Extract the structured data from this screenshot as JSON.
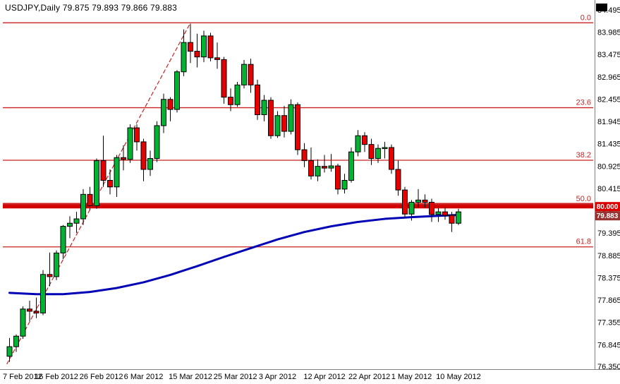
{
  "window": {
    "title": "USDJPY,Daily 79.875 79.893 79.866 79.883"
  },
  "chart_data": {
    "type": "candlestick",
    "title": "USDJPY,Daily",
    "symbol": "USDJPY",
    "timeframe": "Daily",
    "quote": {
      "open": 79.875,
      "high": 79.893,
      "low": 79.866,
      "close": 79.883
    },
    "y_axis": {
      "side": "right",
      "min": 76.35,
      "max": 84.495,
      "labels": [
        "84.495",
        "83.985",
        "83.475",
        "82.965",
        "82.455",
        "81.945",
        "81.435",
        "80.925",
        "80.415",
        "79.905",
        "79.395",
        "78.885",
        "78.375",
        "77.865",
        "77.355",
        "76.845",
        "76.350"
      ]
    },
    "x_axis": {
      "labels": [
        {
          "text": "7 Feb 2012",
          "i": 0
        },
        {
          "text": "16 Feb 2012",
          "i": 7
        },
        {
          "text": "26 Feb 2012",
          "i": 13.7
        },
        {
          "text": "6 Mar 2012",
          "i": 20
        },
        {
          "text": "15 Mar 2012",
          "i": 27
        },
        {
          "text": "25 Mar 2012",
          "i": 33.7
        },
        {
          "text": "3 Apr 2012",
          "i": 40
        },
        {
          "text": "12 Apr 2012",
          "i": 47
        },
        {
          "text": "22 Apr 2012",
          "i": 53.7
        },
        {
          "text": "1 May 2012",
          "i": 60
        },
        {
          "text": "10 May 2012",
          "i": 67
        }
      ]
    },
    "candles": {
      "columns": [
        "date",
        "open",
        "high",
        "low",
        "close"
      ],
      "rows": [
        [
          "7 Feb",
          76.58,
          77.0,
          76.45,
          76.8
        ],
        [
          "8 Feb",
          76.8,
          77.08,
          76.68,
          77.04
        ],
        [
          "9 Feb",
          77.04,
          77.72,
          76.98,
          77.66
        ],
        [
          "10 Feb",
          77.66,
          77.85,
          77.38,
          77.61
        ],
        [
          "13 Feb",
          77.61,
          77.92,
          77.45,
          77.57
        ],
        [
          "14 Feb",
          77.57,
          78.55,
          77.52,
          78.45
        ],
        [
          "15 Feb",
          78.45,
          78.95,
          78.18,
          78.4
        ],
        [
          "16 Feb",
          78.4,
          79.0,
          78.32,
          78.94
        ],
        [
          "17 Feb",
          78.94,
          79.58,
          78.8,
          79.55
        ],
        [
          "20 Feb",
          79.55,
          79.78,
          79.28,
          79.62
        ],
        [
          "21 Feb",
          79.62,
          79.88,
          79.4,
          79.72
        ],
        [
          "22 Feb",
          79.72,
          80.4,
          79.58,
          80.28
        ],
        [
          "23 Feb",
          80.28,
          80.45,
          79.92,
          80.02
        ],
        [
          "24 Feb",
          80.02,
          81.1,
          79.95,
          81.05
        ],
        [
          "27 Feb",
          81.05,
          81.62,
          80.45,
          80.6
        ],
        [
          "28 Feb",
          80.6,
          80.85,
          80.28,
          80.45
        ],
        [
          "29 Feb",
          80.45,
          81.18,
          80.22,
          81.12
        ],
        [
          "1 Mar",
          81.12,
          81.4,
          80.83,
          81.08
        ],
        [
          "2 Mar",
          81.08,
          81.88,
          81.0,
          81.8
        ],
        [
          "5 Mar",
          81.8,
          81.88,
          81.28,
          81.48
        ],
        [
          "6 Mar",
          81.48,
          81.55,
          80.58,
          80.85
        ],
        [
          "7 Mar",
          80.85,
          81.28,
          80.7,
          81.1
        ],
        [
          "8 Mar",
          81.1,
          81.95,
          81.02,
          81.85
        ],
        [
          "9 Mar",
          81.85,
          82.58,
          81.68,
          82.45
        ],
        [
          "12 Mar",
          82.45,
          82.5,
          81.95,
          82.22
        ],
        [
          "13 Mar",
          82.22,
          83.12,
          82.15,
          83.08
        ],
        [
          "14 Mar",
          83.08,
          84.05,
          82.98,
          83.75
        ],
        [
          "15 Mar",
          83.75,
          84.18,
          83.28,
          83.55
        ],
        [
          "16 Mar",
          83.55,
          83.95,
          83.18,
          83.42
        ],
        [
          "19 Mar",
          83.42,
          84.02,
          83.3,
          83.9
        ],
        [
          "20 Mar",
          83.9,
          83.97,
          83.32,
          83.4
        ],
        [
          "21 Mar",
          83.4,
          83.75,
          83.15,
          83.36
        ],
        [
          "22 Mar",
          83.36,
          83.42,
          82.35,
          82.5
        ],
        [
          "23 Mar",
          82.5,
          82.7,
          82.18,
          82.33
        ],
        [
          "26 Mar",
          82.33,
          82.85,
          82.28,
          82.78
        ],
        [
          "27 Mar",
          82.78,
          83.35,
          82.7,
          83.25
        ],
        [
          "28 Mar",
          83.25,
          83.38,
          82.6,
          82.78
        ],
        [
          "29 Mar",
          82.78,
          82.9,
          81.98,
          82.1
        ],
        [
          "30 Mar",
          82.1,
          82.55,
          81.95,
          82.43
        ],
        [
          "2 Apr",
          82.43,
          82.5,
          81.55,
          81.62
        ],
        [
          "3 Apr",
          81.62,
          82.18,
          81.57,
          82.08
        ],
        [
          "4 Apr",
          82.08,
          82.3,
          81.58,
          81.72
        ],
        [
          "5 Apr",
          81.72,
          82.45,
          81.65,
          82.33
        ],
        [
          "6 Apr",
          82.33,
          82.38,
          81.18,
          81.3
        ],
        [
          "9 Apr",
          81.3,
          81.45,
          80.9,
          81.05
        ],
        [
          "10 Apr",
          81.05,
          81.35,
          80.62,
          80.7
        ],
        [
          "11 Apr",
          80.7,
          81.08,
          80.58,
          80.92
        ],
        [
          "12 Apr",
          80.92,
          81.18,
          80.78,
          80.88
        ],
        [
          "13 Apr",
          80.88,
          81.2,
          80.8,
          80.93
        ],
        [
          "16 Apr",
          80.93,
          80.98,
          80.28,
          80.4
        ],
        [
          "17 Apr",
          80.4,
          80.75,
          80.3,
          80.6
        ],
        [
          "18 Apr",
          80.6,
          81.35,
          80.55,
          81.25
        ],
        [
          "19 Apr",
          81.25,
          81.75,
          81.15,
          81.62
        ],
        [
          "20 Apr",
          81.62,
          81.7,
          81.25,
          81.42
        ],
        [
          "23 Apr",
          81.42,
          81.55,
          80.95,
          81.1
        ],
        [
          "24 Apr",
          81.1,
          81.42,
          81.0,
          81.33
        ],
        [
          "25 Apr",
          81.33,
          81.48,
          81.1,
          81.35
        ],
        [
          "26 Apr",
          81.35,
          81.42,
          80.75,
          80.85
        ],
        [
          "27 Apr",
          80.85,
          81.05,
          80.25,
          80.38
        ],
        [
          "30 Apr",
          80.38,
          80.45,
          79.75,
          79.83
        ],
        [
          "1 May",
          79.83,
          80.15,
          79.68,
          80.1
        ],
        [
          "2 May",
          80.1,
          80.4,
          79.98,
          80.15
        ],
        [
          "3 May",
          80.15,
          80.28,
          79.98,
          80.1
        ],
        [
          "4 May",
          80.1,
          80.18,
          79.65,
          79.82
        ],
        [
          "7 May",
          79.82,
          80.0,
          79.65,
          79.88
        ],
        [
          "8 May",
          79.88,
          79.98,
          79.7,
          79.8
        ],
        [
          "9 May",
          79.8,
          79.88,
          79.42,
          79.62
        ],
        [
          "10 May",
          79.62,
          79.95,
          79.58,
          79.88
        ]
      ]
    },
    "overlays": {
      "moving_average": {
        "color": "#0000B4",
        "points": [
          [
            0,
            78.03
          ],
          [
            4,
            78.0
          ],
          [
            8,
            78.0
          ],
          [
            12,
            78.05
          ],
          [
            16,
            78.14
          ],
          [
            20,
            78.27
          ],
          [
            24,
            78.44
          ],
          [
            28,
            78.64
          ],
          [
            32,
            78.85
          ],
          [
            36,
            79.05
          ],
          [
            40,
            79.25
          ],
          [
            44,
            79.42
          ],
          [
            48,
            79.55
          ],
          [
            52,
            79.65
          ],
          [
            56,
            79.72
          ],
          [
            60,
            79.76
          ],
          [
            64,
            79.79
          ],
          [
            67,
            79.81
          ]
        ]
      },
      "trendline": {
        "color": "#CC2222",
        "style": "dashed",
        "from": [
          -0.4,
          76.4
        ],
        "to": [
          27,
          84.2
        ]
      },
      "fibonacci": {
        "color": "#CC2222",
        "levels": [
          {
            "label": "0.0",
            "value": 84.2
          },
          {
            "label": "23.6",
            "value": 82.26
          },
          {
            "label": "38.2",
            "value": 81.06
          },
          {
            "label": "50.0",
            "value": 80.06
          },
          {
            "label": "61.8",
            "value": 79.08
          }
        ]
      },
      "horizontal_line": {
        "value": 80.0,
        "color": "#D40000",
        "width": 5
      }
    },
    "price_tags": [
      {
        "text": "80.000",
        "value": 80.0,
        "bg": "#DD0000",
        "fg": "#FFFFFF"
      },
      {
        "text": "79.883",
        "value": 79.883,
        "bg": "#993333",
        "fg": "#FFFFFF"
      }
    ],
    "colors": {
      "background": "#FFFFFF",
      "bull": "#00B332",
      "bear": "#E60000",
      "outline": "#000000",
      "axis_text": "#000000",
      "axis_line": "#808080"
    },
    "grid": "off",
    "legend": "none"
  }
}
